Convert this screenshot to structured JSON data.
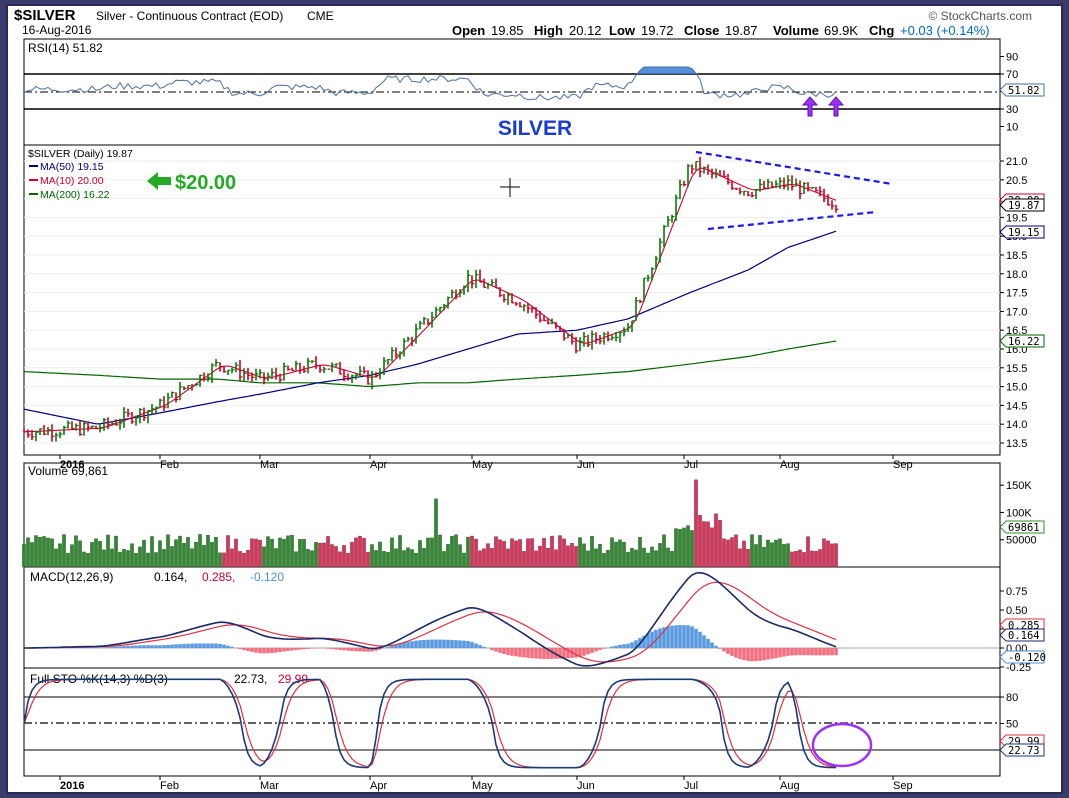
{
  "header": {
    "symbol": "$SILVER",
    "description": "Silver - Continuous Contract (EOD)",
    "exchange": "CME",
    "date": "16-Aug-2016",
    "watermark": "© StockCharts.com",
    "open_label": "Open",
    "open": "19.85",
    "high_label": "High",
    "high": "20.12",
    "low_label": "Low",
    "low": "19.72",
    "close_label": "Close",
    "close": "19.87",
    "volume_label": "Volume",
    "volume": "69.9K",
    "chg_label": "Chg",
    "chg": "+0.03 (+0.14%)",
    "chg_color": "#0066cc"
  },
  "panels": {
    "rsi": {
      "title": "RSI(14) 51.82",
      "ticks": [
        "90",
        "70",
        "50",
        "30",
        "10"
      ],
      "badge": "51.82"
    },
    "price": {
      "banner": "SILVER",
      "legend": [
        "$SILVER (Daily) 19.87",
        "MA(50) 19.15",
        "MA(10) 20.00",
        "MA(200) 16.22"
      ],
      "legend_colors": [
        "#000000",
        "#000080",
        "#cc0033",
        "#006600"
      ],
      "annotation": "$20.00",
      "annotation_color": "#22aa22",
      "ticks": [
        "21.0",
        "20.5",
        "20.0",
        "19.5",
        "19.0",
        "18.5",
        "18.0",
        "17.5",
        "17.0",
        "16.5",
        "16.0",
        "15.5",
        "15.0",
        "14.5",
        "14.0",
        "13.5"
      ],
      "badges": [
        "20.00",
        "19.87",
        "19.15",
        "16.22"
      ]
    },
    "volume": {
      "title": "Volume 69,861",
      "ticks": [
        "150K",
        "100K",
        "50000"
      ],
      "badge": "69861"
    },
    "macd": {
      "title": "MACD(12,26,9)",
      "v1": "0.164,",
      "v2": "0.285,",
      "v3": "-0.120",
      "ticks": [
        "0.75",
        "0.50",
        "0.25",
        "0.00",
        "-0.25"
      ],
      "badges": [
        "0.285",
        "0.164",
        "-0.120"
      ]
    },
    "sto": {
      "title": "Full STO %K(14,3) %D(3)",
      "v1": "22.73,",
      "v2": "29.99",
      "ticks": [
        "80",
        "50",
        "20"
      ],
      "badges": [
        "29.99",
        "22.73"
      ]
    }
  },
  "x_axis": {
    "labels": [
      "2016",
      "Feb",
      "Mar",
      "Apr",
      "May",
      "Jun",
      "Jul",
      "Aug",
      "Sep"
    ]
  },
  "chart_data": {
    "type": "line",
    "title": "$SILVER Silver - Continuous Contract (EOD)",
    "x": [
      "2016-01",
      "2016-01-15",
      "2016-02",
      "2016-02-15",
      "2016-03",
      "2016-03-15",
      "2016-04",
      "2016-04-15",
      "2016-04-29",
      "2016-05-15",
      "2016-06",
      "2016-06-15",
      "2016-07-05",
      "2016-07-15",
      "2016-08-01",
      "2016-08-16"
    ],
    "series": [
      {
        "name": "$SILVER (Daily)",
        "values": [
          13.8,
          13.9,
          14.5,
          15.6,
          15.2,
          15.6,
          15.2,
          16.5,
          17.9,
          17.3,
          16.1,
          16.6,
          20.9,
          20.2,
          20.4,
          19.87
        ]
      },
      {
        "name": "MA(50)",
        "values": [
          14.4,
          14.0,
          14.3,
          14.6,
          14.8,
          15.1,
          15.3,
          15.6,
          16.0,
          16.4,
          16.5,
          16.8,
          17.5,
          18.1,
          18.7,
          19.15
        ]
      },
      {
        "name": "MA(200)",
        "values": [
          15.4,
          15.3,
          15.2,
          15.2,
          15.1,
          15.1,
          15.0,
          15.1,
          15.1,
          15.2,
          15.3,
          15.4,
          15.6,
          15.8,
          16.0,
          16.22
        ]
      }
    ],
    "ylim": [
      13.5,
      21.2
    ],
    "xlabel": "",
    "ylabel": ""
  }
}
